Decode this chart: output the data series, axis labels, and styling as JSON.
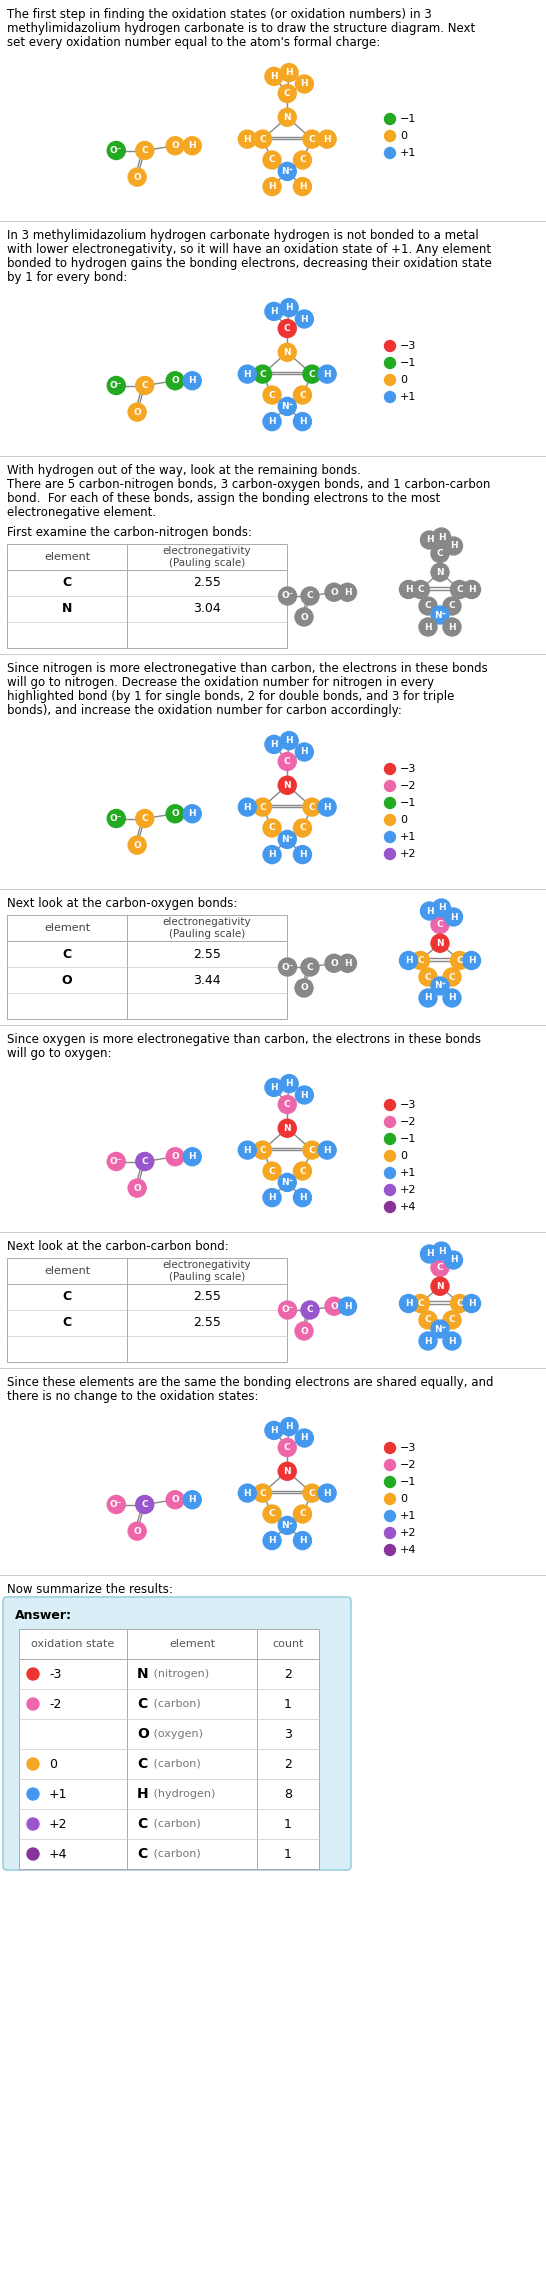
{
  "title_text1": "The first step in finding the oxidation states (or oxidation numbers) in 3",
  "title_text2": "methylimidazolium hydrogen carbonate is to draw the structure diagram. Next",
  "title_text3": "set every oxidation number equal to the atom's formal charge:",
  "sec2_text1": "In 3 methylimidazolium hydrogen carbonate hydrogen is not bonded to a metal",
  "sec2_text2": "with lower electronegativity, so it will have an oxidation state of +1. Any element",
  "sec2_text3": "bonded to hydrogen gains the bonding electrons, decreasing their oxidation state",
  "sec2_text4": "by 1 for every bond:",
  "sec3_text1": "With hydrogen out of the way, look at the remaining bonds.",
  "sec3_text2": "There are 5 carbon-nitrogen bonds, 3 carbon-oxygen bonds, and 1 carbon-carbon",
  "sec3_text3": "bond.  For each of these bonds, assign the bonding electrons to the most",
  "sec3_text4": "electronegative element.",
  "sec4_text1": "First examine the carbon-nitrogen bonds:",
  "sec4b_text1": "Since nitrogen is more electronegative than carbon, the electrons in these bonds",
  "sec4b_text2": "will go to nitrogen. Decrease the oxidation number for nitrogen in every",
  "sec4b_text3": "highlighted bond (by 1 for single bonds, 2 for double bonds, and 3 for triple",
  "sec4b_text4": "bonds), and increase the oxidation number for carbon accordingly:",
  "sec5_text1": "Next look at the carbon-oxygen bonds:",
  "sec5b_text1": "Since oxygen is more electronegative than carbon, the electrons in these bonds",
  "sec5b_text2": "will go to oxygen:",
  "sec6_text1": "Next look at the carbon-carbon bond:",
  "sec6b_text1": "Since these elements are the same the bonding electrons are shared equally, and",
  "sec6b_text2": "there is no change to the oxidation states:",
  "sec7_text1": "Now summarize the results:",
  "bg_color": "#ffffff",
  "sep_color": "#cccccc",
  "ans_bg": "#daeef7",
  "ans_border": "#9ecfe0",
  "colors": {
    "red": "#ee3333",
    "green": "#22aa22",
    "orange": "#f5a623",
    "blue": "#4499ee",
    "pink": "#ee66aa",
    "purple": "#9955cc",
    "dark_purple": "#883399",
    "gray": "#888888"
  }
}
